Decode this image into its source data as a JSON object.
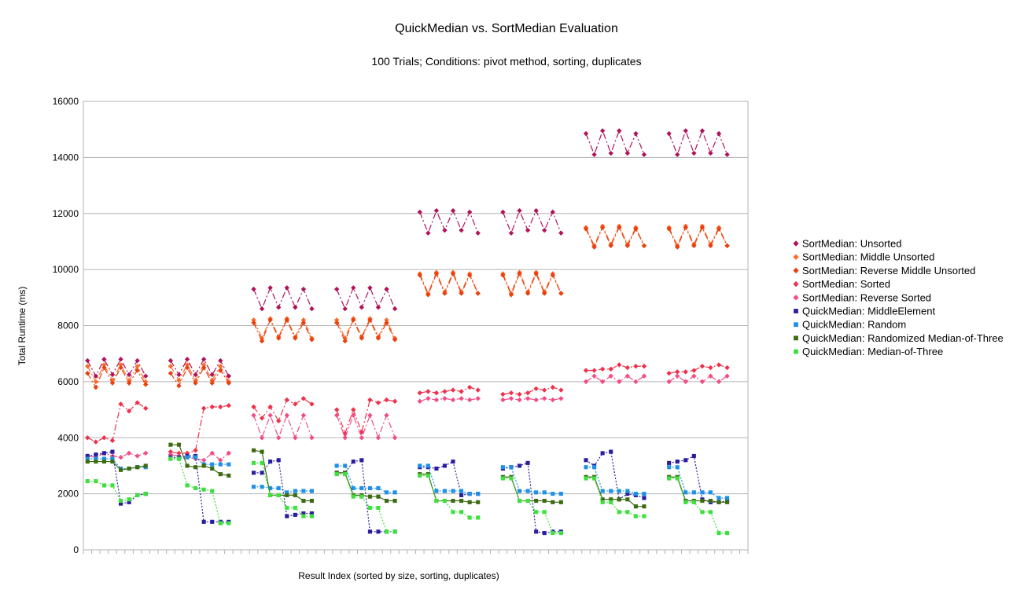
{
  "chart_data": {
    "type": "line",
    "title": "QuickMedian vs. SortMedian Evaluation",
    "subtitle": "100 Trials; Conditions: pivot method, sorting, duplicates",
    "xlabel": "Result Index (sorted by size, sorting, duplicates)",
    "ylabel": "Total Runtime (ms)",
    "ylim": [
      0,
      16000
    ],
    "yticks": [
      "0",
      "2000",
      "4000",
      "6000",
      "8000",
      "10000",
      "12000",
      "14000",
      "16000"
    ],
    "x_count": 80,
    "grid": true,
    "legend_position": "right",
    "series": [
      {
        "name": "SortMedian: Unsorted",
        "color": "#b0135a",
        "marker": "diamond",
        "line": "dashdot",
        "values": [
          6750,
          6200,
          6800,
          6250,
          6800,
          6250,
          6750,
          6200,
          null,
          null,
          6750,
          6250,
          6800,
          6250,
          6800,
          6250,
          6750,
          6200,
          null,
          null,
          9300,
          8600,
          9350,
          8650,
          9350,
          8650,
          9300,
          8600,
          null,
          null,
          9300,
          8600,
          9350,
          8650,
          9350,
          8650,
          9300,
          8600,
          null,
          null,
          12050,
          11300,
          12100,
          11400,
          12100,
          11400,
          12050,
          11300,
          null,
          null,
          12050,
          11300,
          12100,
          11400,
          12100,
          11400,
          12050,
          11300,
          null,
          null,
          14850,
          14100,
          14950,
          14150,
          14950,
          14150,
          14850,
          14100,
          null,
          null,
          14850,
          14100,
          14950,
          14150,
          14950,
          14150,
          14850,
          14100,
          null,
          null
        ]
      },
      {
        "name": "SortMedian: Middle Unsorted",
        "color": "#ff6a2b",
        "marker": "diamond",
        "line": "dashdot",
        "values": [
          6550,
          6000,
          6600,
          6050,
          6600,
          6050,
          6550,
          6000,
          null,
          null,
          6550,
          6050,
          6600,
          6050,
          6600,
          6050,
          6550,
          6000,
          null,
          null,
          8200,
          7550,
          8250,
          7600,
          8250,
          7600,
          8200,
          7550,
          null,
          null,
          8200,
          7550,
          8250,
          7600,
          8250,
          7600,
          8200,
          7550,
          null,
          null,
          9850,
          9150,
          9900,
          9200,
          9900,
          9200,
          9850,
          9150,
          null,
          null,
          9850,
          9150,
          9900,
          9200,
          9900,
          9200,
          9850,
          9150,
          null,
          null,
          11500,
          10850,
          11550,
          10900,
          11550,
          10900,
          11500,
          10850,
          null,
          null,
          11500,
          10850,
          11550,
          10900,
          11550,
          10900,
          11500,
          10850,
          null,
          null
        ]
      },
      {
        "name": "SortMedian: Reverse Middle Unsorted",
        "color": "#e8400f",
        "marker": "diamond",
        "line": "dashdot",
        "values": [
          6300,
          5800,
          6500,
          5950,
          6500,
          5950,
          6400,
          5900,
          null,
          null,
          6300,
          5850,
          6500,
          5950,
          6500,
          5950,
          6400,
          5950,
          null,
          null,
          8100,
          7450,
          8200,
          7550,
          8200,
          7550,
          8100,
          7500,
          null,
          null,
          8100,
          7450,
          8200,
          7550,
          8200,
          7550,
          8100,
          7500,
          null,
          null,
          9800,
          9100,
          9850,
          9150,
          9850,
          9150,
          9800,
          9150,
          null,
          null,
          9800,
          9100,
          9850,
          9150,
          9850,
          9150,
          9800,
          9150,
          null,
          null,
          11450,
          10800,
          11500,
          10850,
          11500,
          10850,
          11450,
          10850,
          null,
          null,
          11450,
          10800,
          11500,
          10850,
          11500,
          10850,
          11450,
          10850,
          null,
          null
        ]
      },
      {
        "name": "SortMedian: Sorted",
        "color": "#f0304a",
        "marker": "diamond",
        "line": "dashdot",
        "values": [
          4000,
          3850,
          4000,
          3900,
          5200,
          4950,
          5250,
          5050,
          null,
          null,
          3500,
          3450,
          3450,
          3550,
          5050,
          5100,
          5100,
          5150,
          null,
          null,
          5100,
          4700,
          5100,
          4600,
          5350,
          5200,
          5400,
          5200,
          null,
          null,
          5000,
          4150,
          5000,
          4200,
          5350,
          5250,
          5350,
          5300,
          null,
          null,
          5600,
          5650,
          5600,
          5650,
          5700,
          5650,
          5800,
          5700,
          null,
          null,
          5550,
          5600,
          5550,
          5600,
          5750,
          5700,
          5800,
          5700,
          null,
          null,
          6400,
          6400,
          6450,
          6450,
          6600,
          6500,
          6550,
          6550,
          null,
          null,
          6300,
          6350,
          6350,
          6400,
          6550,
          6500,
          6600,
          6500,
          null,
          null
        ]
      },
      {
        "name": "SortMedian: Reverse Sorted",
        "color": "#f24c86",
        "marker": "diamond",
        "line": "dashdot",
        "values": [
          3350,
          3300,
          3450,
          3350,
          3300,
          3450,
          3350,
          3450,
          null,
          null,
          3400,
          3350,
          3300,
          3250,
          3200,
          3450,
          3200,
          3450,
          null,
          null,
          4800,
          4000,
          4800,
          4000,
          4800,
          4000,
          4800,
          4000,
          null,
          null,
          4800,
          4000,
          4800,
          4000,
          4800,
          4000,
          4800,
          4000,
          null,
          null,
          5300,
          5400,
          5350,
          5400,
          5350,
          5400,
          5350,
          5400,
          null,
          null,
          5350,
          5400,
          5350,
          5400,
          5350,
          5400,
          5350,
          5400,
          null,
          null,
          6000,
          6200,
          6000,
          6200,
          6000,
          6200,
          6000,
          6200,
          null,
          null,
          6000,
          6200,
          6000,
          6200,
          6000,
          6200,
          6000,
          6200,
          null,
          null
        ]
      },
      {
        "name": "QuickMedian: MiddleElement",
        "color": "#2a1ea0",
        "marker": "square",
        "line": "dotted",
        "values": [
          3350,
          3400,
          3450,
          3500,
          1650,
          1700,
          1950,
          2000,
          null,
          null,
          3300,
          3300,
          3350,
          3350,
          1000,
          1000,
          1000,
          1000,
          null,
          null,
          2750,
          2750,
          3150,
          3200,
          1200,
          1250,
          1300,
          1300,
          null,
          null,
          2750,
          2750,
          3150,
          3200,
          650,
          650,
          650,
          650,
          null,
          null,
          2950,
          2950,
          2900,
          3000,
          3150,
          1950,
          2000,
          2000,
          null,
          null,
          2900,
          2950,
          3000,
          3100,
          650,
          600,
          650,
          650,
          null,
          null,
          3200,
          3000,
          3450,
          3500,
          1800,
          2000,
          1950,
          1850,
          null,
          null,
          3100,
          3150,
          3200,
          3350,
          1800,
          1700,
          1700,
          1750,
          null,
          null
        ]
      },
      {
        "name": "QuickMedian: Random",
        "color": "#1e90e8",
        "marker": "square",
        "line": "dotted",
        "values": [
          3250,
          3250,
          3250,
          3250,
          2900,
          2900,
          2950,
          2950,
          null,
          null,
          3250,
          3250,
          3300,
          3300,
          3050,
          3050,
          3050,
          3050,
          null,
          null,
          2250,
          2250,
          2200,
          2200,
          2050,
          2100,
          2100,
          2100,
          null,
          null,
          3000,
          3000,
          2200,
          2200,
          2200,
          2200,
          2050,
          2050,
          null,
          null,
          3000,
          3000,
          2100,
          2100,
          2100,
          2100,
          2000,
          2000,
          null,
          null,
          2950,
          2950,
          2100,
          2100,
          2050,
          2050,
          2000,
          2000,
          null,
          null,
          2950,
          2950,
          2100,
          2100,
          2100,
          2100,
          2000,
          2000,
          null,
          null,
          2950,
          2950,
          2050,
          2050,
          2050,
          2050,
          1850,
          1850,
          null,
          null
        ]
      },
      {
        "name": "QuickMedian: Randomized Median-of-Three",
        "color": "#3d6b12",
        "marker": "square",
        "line": "solid",
        "values": [
          3150,
          3150,
          3150,
          3150,
          2850,
          2900,
          2950,
          3000,
          null,
          null,
          3750,
          3750,
          3000,
          2950,
          3000,
          2900,
          2700,
          2650,
          null,
          null,
          3550,
          3500,
          1950,
          1950,
          1950,
          1950,
          1750,
          1750,
          null,
          null,
          2750,
          2750,
          1950,
          1950,
          1900,
          1900,
          1750,
          1750,
          null,
          null,
          2700,
          2700,
          1750,
          1750,
          1750,
          1750,
          1700,
          1700,
          null,
          null,
          2600,
          2600,
          1750,
          1750,
          1750,
          1750,
          1700,
          1700,
          null,
          null,
          2600,
          2600,
          1800,
          1800,
          1800,
          1800,
          1550,
          1550,
          null,
          null,
          2600,
          2600,
          1750,
          1750,
          1750,
          1750,
          1700,
          1700,
          null,
          null
        ]
      },
      {
        "name": "QuickMedian: Median-of-Three",
        "color": "#3de03d",
        "marker": "square",
        "line": "dotted",
        "values": [
          2450,
          2450,
          2300,
          2300,
          1750,
          1800,
          1950,
          2000,
          null,
          null,
          3250,
          3250,
          2300,
          2200,
          2150,
          2100,
          950,
          950,
          null,
          null,
          3100,
          3100,
          1950,
          1950,
          1500,
          1500,
          1200,
          1200,
          null,
          null,
          2700,
          2700,
          1900,
          1900,
          1500,
          1500,
          650,
          650,
          null,
          null,
          2650,
          2650,
          1750,
          1750,
          1350,
          1350,
          1150,
          1150,
          null,
          null,
          2550,
          2550,
          1750,
          1750,
          1350,
          1350,
          600,
          600,
          null,
          null,
          2550,
          2550,
          1700,
          1700,
          1350,
          1350,
          1200,
          1200,
          null,
          null,
          2550,
          2550,
          1700,
          1700,
          1350,
          1350,
          600,
          600,
          null,
          null
        ]
      }
    ]
  }
}
